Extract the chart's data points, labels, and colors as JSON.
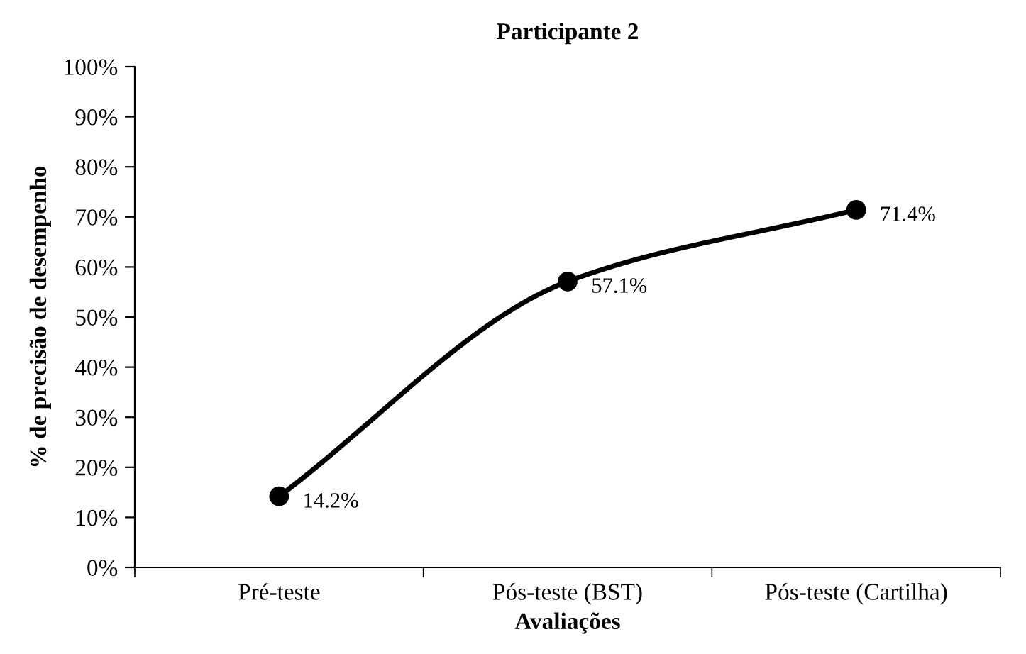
{
  "chart_data": {
    "type": "line",
    "title": "Participante 2",
    "xlabel": "Avaliações",
    "ylabel": "% de precisão de desempenho",
    "categories": [
      "Pré-teste",
      "Pós-teste (BST)",
      "Pós-teste (Cartilha)"
    ],
    "series": [
      {
        "color": "#000000",
        "values": [
          14.2,
          57.1,
          71.4
        ],
        "value_labels": [
          "14.2%",
          "57.1%",
          "71.4%"
        ]
      }
    ],
    "ylim": [
      0,
      100
    ],
    "yticks": [
      {
        "value": 0,
        "label": "0%"
      },
      {
        "value": 10,
        "label": "10%"
      },
      {
        "value": 20,
        "label": "20%"
      },
      {
        "value": 30,
        "label": "30%"
      },
      {
        "value": 40,
        "label": "40%"
      },
      {
        "value": 50,
        "label": "50%"
      },
      {
        "value": 60,
        "label": "60%"
      },
      {
        "value": 70,
        "label": "70%"
      },
      {
        "value": 80,
        "label": "80%"
      },
      {
        "value": 90,
        "label": "90%"
      },
      {
        "value": 100,
        "label": "100%"
      }
    ],
    "marker": "circle",
    "line_style": "solid",
    "grid": false,
    "legend": false
  }
}
